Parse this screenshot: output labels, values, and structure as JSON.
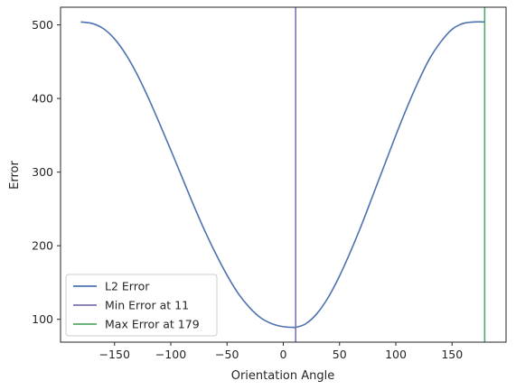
{
  "chart_data": {
    "type": "line",
    "xlabel": "Orientation Angle",
    "ylabel": "Error",
    "xlim": [
      -198,
      198
    ],
    "ylim": [
      69,
      524
    ],
    "xticks": [
      -150,
      -100,
      -50,
      0,
      50,
      100,
      150
    ],
    "yticks": [
      100,
      200,
      300,
      400,
      500
    ],
    "xtick_labels": [
      "−150",
      "−100",
      "−50",
      "0",
      "50",
      "100",
      "150"
    ],
    "ytick_labels": [
      "100",
      "200",
      "300",
      "400",
      "500"
    ],
    "grid": false,
    "legend_position": "lower-left",
    "series": [
      {
        "name": "L2 Error",
        "color": "#4c72b0",
        "x": [
          -180,
          -170,
          -160,
          -150,
          -140,
          -130,
          -120,
          -110,
          -100,
          -90,
          -80,
          -70,
          -60,
          -50,
          -40,
          -30,
          -20,
          -10,
          0,
          10,
          11,
          20,
          30,
          40,
          50,
          60,
          70,
          80,
          90,
          100,
          110,
          120,
          130,
          140,
          150,
          160,
          170,
          179
        ],
        "y": [
          504,
          502,
          495,
          481,
          460,
          433,
          401,
          366,
          330,
          293,
          256,
          221,
          189,
          160,
          135,
          116,
          102,
          94,
          90,
          89,
          89,
          94,
          108,
          130,
          159,
          193,
          230,
          270,
          310,
          350,
          388,
          423,
          454,
          477,
          494,
          502,
          504,
          504
        ]
      }
    ],
    "vlines": [
      {
        "name": "Min Error at 11",
        "x": 11,
        "color": "#8172b2"
      },
      {
        "name": "Max Error at 179",
        "x": 179,
        "color": "#55a868"
      }
    ]
  }
}
